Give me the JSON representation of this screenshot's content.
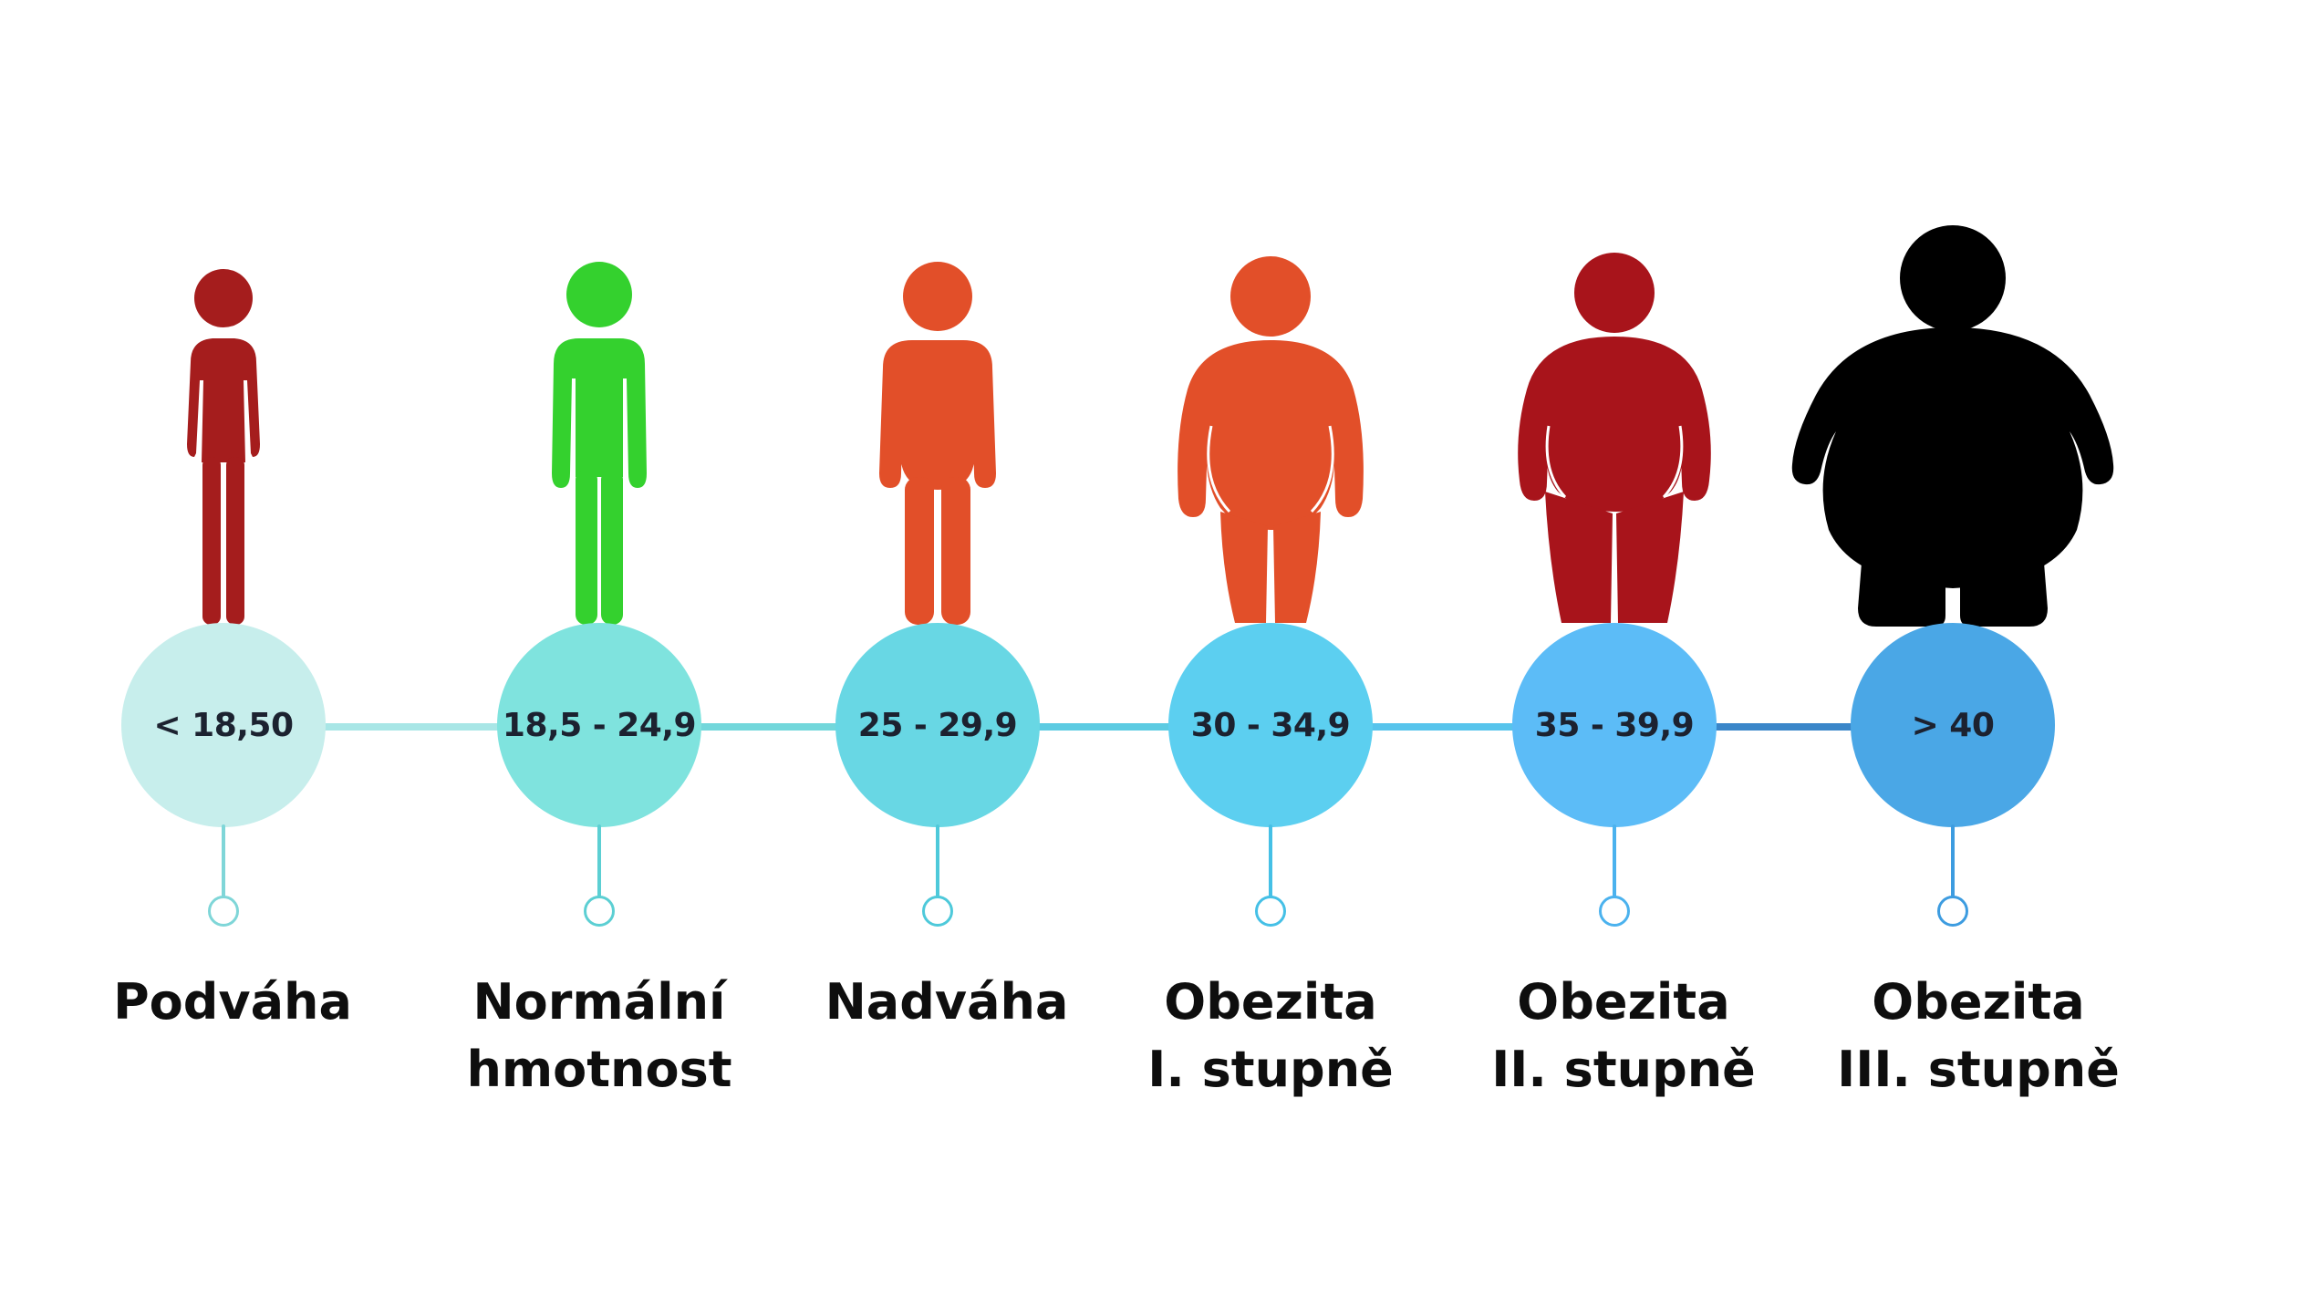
{
  "categories": [
    {
      "id": "underweight",
      "range": "< 18,50",
      "label_lines": [
        "Podváha"
      ],
      "figure_color": "#a51d1d",
      "circle_color": "#c7eeec",
      "stem_color": "#7fd6d8",
      "figure_icon": "slim-person-icon"
    },
    {
      "id": "normal",
      "range": "18,5 - 24,9",
      "label_lines": [
        "Normální",
        "hmotnost"
      ],
      "figure_color": "#34d12e",
      "circle_color": "#7fe3de",
      "stem_color": "#5ccfd3",
      "figure_icon": "normal-person-icon"
    },
    {
      "id": "overweight",
      "range": "25 - 29,9",
      "label_lines": [
        "Nadváha"
      ],
      "figure_color": "#e24f29",
      "circle_color": "#68d7e4",
      "stem_color": "#4ec9da",
      "figure_icon": "overweight-person-icon"
    },
    {
      "id": "obesity-1",
      "range": "30 - 34,9",
      "label_lines": [
        "Obezita",
        "I. stupně"
      ],
      "figure_color": "#e24f29",
      "circle_color": "#5ccff0",
      "stem_color": "#45c0e6",
      "figure_icon": "obese-person-icon"
    },
    {
      "id": "obesity-2",
      "range": "35 - 39,9",
      "label_lines": [
        "Obezita",
        "II. stupně"
      ],
      "figure_color": "#a8141b",
      "circle_color": "#5cbcf7",
      "stem_color": "#4bb2ee",
      "figure_icon": "obese-person-icon"
    },
    {
      "id": "obesity-3",
      "range": "> 40",
      "label_lines": [
        "Obezita",
        "III. stupně"
      ],
      "figure_color": "#000000",
      "circle_color": "#4aa7e6",
      "stem_color": "#3d9ce0",
      "figure_icon": "morbidly-obese-person-icon"
    }
  ],
  "connector_colors": [
    "#a8e6e6",
    "#72d7db",
    "#5ccbe2",
    "#57c4ec",
    "#3a86c9"
  ]
}
